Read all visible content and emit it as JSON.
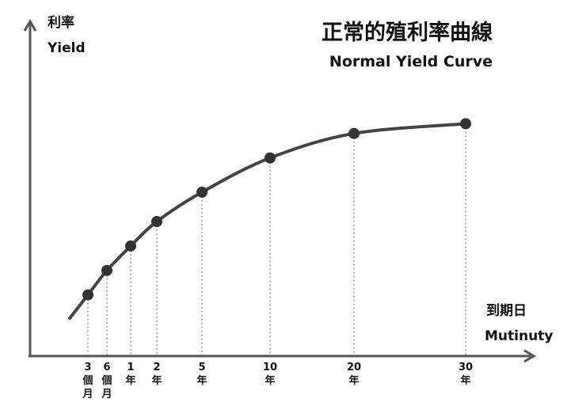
{
  "title_zh": "正常的殖利率曲線",
  "title_en": "Normal Yield Curve",
  "y_axis": {
    "label_zh": "利率",
    "label_en": "Yield"
  },
  "x_axis": {
    "label_zh": "到期日",
    "label_en": "Mutinuty"
  },
  "colors": {
    "curve": "#444444",
    "axis": "#555555",
    "point": "#333333"
  },
  "chart_data": {
    "type": "line",
    "title": "正常的殖利率曲線 Normal Yield Curve",
    "xlabel": "到期日 Mutinuty",
    "ylabel": "利率 Yield",
    "x_scale": "nonlinear (short maturities expanded)",
    "ticks": [
      {
        "value_years": 0.25,
        "lines": [
          "3",
          "個",
          "月"
        ]
      },
      {
        "value_years": 0.5,
        "lines": [
          "6",
          "個",
          "月"
        ]
      },
      {
        "value_years": 1,
        "lines": [
          "1",
          "年"
        ]
      },
      {
        "value_years": 2,
        "lines": [
          "2",
          "年"
        ]
      },
      {
        "value_years": 5,
        "lines": [
          "5",
          "年"
        ]
      },
      {
        "value_years": 10,
        "lines": [
          "10",
          "年"
        ]
      },
      {
        "value_years": 20,
        "lines": [
          "20",
          "年"
        ]
      },
      {
        "value_years": 30,
        "lines": [
          "30",
          "年"
        ]
      }
    ],
    "series": [
      {
        "values": [
          0.25,
          0.35,
          0.45,
          0.55,
          0.67,
          0.81,
          0.91,
          0.95
        ]
      }
    ],
    "ylim": [
      0,
      1.1
    ],
    "grid": false,
    "legend": "none"
  }
}
